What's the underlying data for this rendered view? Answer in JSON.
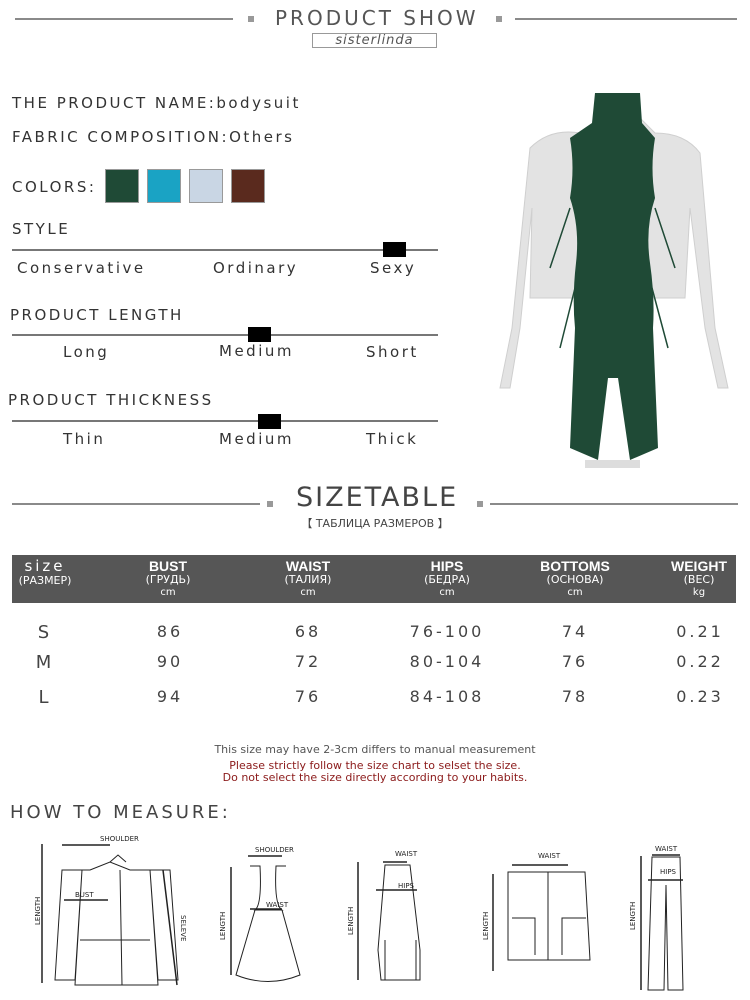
{
  "header": {
    "title": "PRODUCT SHOW",
    "brand": "sisterlinda"
  },
  "product": {
    "name_label": "THE PRODUCT NAME:",
    "name": "bodysuit",
    "fabric_label": "FABRIC COMPOSITION:",
    "fabric": "Others",
    "colors_label": "COLORS:",
    "colors": [
      "#1f4a36",
      "#1aa3c4",
      "#c9d6e4",
      "#5a2a1e"
    ]
  },
  "style": {
    "title": "STYLE",
    "options": [
      "Conservative",
      "Ordinary",
      "Sexy"
    ],
    "selected": "Sexy"
  },
  "length": {
    "title": "PRODUCT LENGTH",
    "options": [
      "Long",
      "Medium",
      "Short"
    ],
    "selected": "Medium"
  },
  "thickness": {
    "title": "PRODUCT THICKNESS",
    "options": [
      "Thin",
      "Medium",
      "Thick"
    ],
    "selected": "Medium"
  },
  "sizetable": {
    "title": "SIZETABLE",
    "subtitle": "【 ТАБЛИЦА РАЗМЕРОВ 】",
    "columns": [
      {
        "en": "size",
        "ru": "(РАЗМЕР)",
        "unit": ""
      },
      {
        "en": "BUST",
        "ru": "(ГРУДЬ)",
        "unit": "cm"
      },
      {
        "en": "WAIST",
        "ru": "(ТАЛИЯ)",
        "unit": "cm"
      },
      {
        "en": "HIPS",
        "ru": "(БЕДРА)",
        "unit": "cm"
      },
      {
        "en": "BOTTOMS",
        "ru": "(ОСНОВА)",
        "unit": "cm"
      },
      {
        "en": "WEIGHT",
        "ru": "(ВЕС)",
        "unit": "kg"
      }
    ],
    "rows": [
      [
        "S",
        "86",
        "68",
        "76-100",
        "74",
        "0.21"
      ],
      [
        "M",
        "90",
        "72",
        "80-104",
        "76",
        "0.22"
      ],
      [
        "L",
        "94",
        "76",
        "84-108",
        "78",
        "0.23"
      ]
    ]
  },
  "notes": {
    "line1": "This size may have 2-3cm differs to manual measurement",
    "line2": "Please strictly follow the size chart to selset the size.",
    "line3": "Do not select the size directly according to your habits."
  },
  "measure": {
    "title": "HOW TO MEASURE:",
    "labels": {
      "shoulder": "SHOULDER",
      "bust": "BUST",
      "length": "LENGTH",
      "sleeve": "SELEVE",
      "waist": "WAIST",
      "hips": "HIPS"
    }
  }
}
